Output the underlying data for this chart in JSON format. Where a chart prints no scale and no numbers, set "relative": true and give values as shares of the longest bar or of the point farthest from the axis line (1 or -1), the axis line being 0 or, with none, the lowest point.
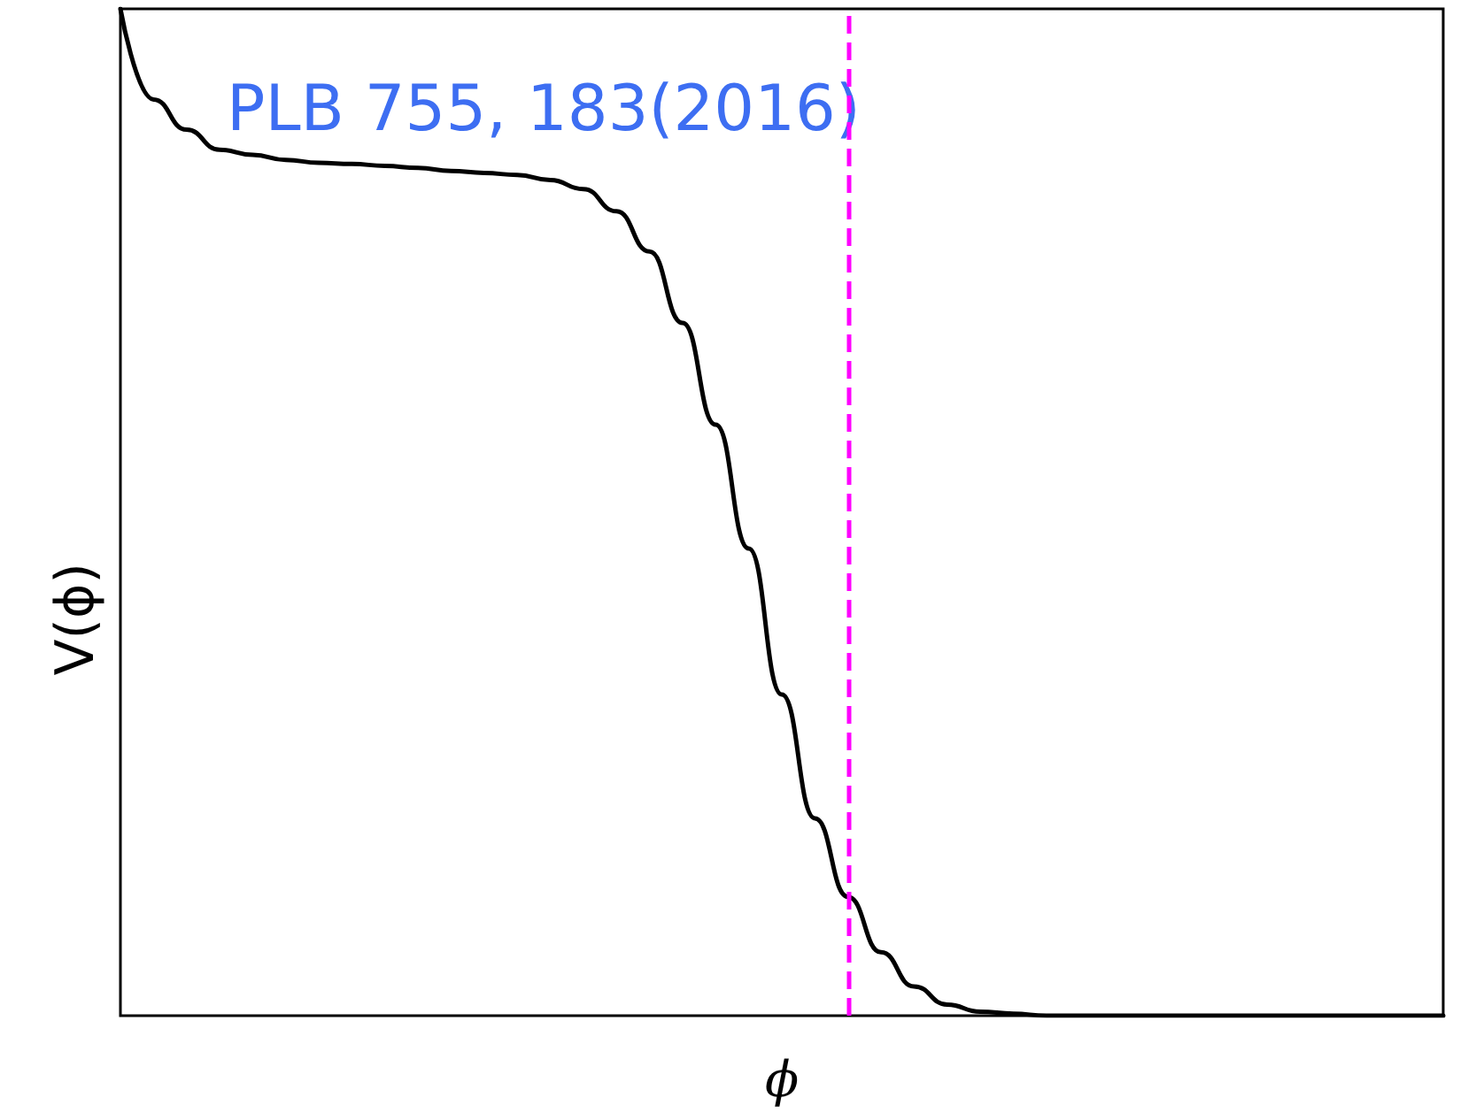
{
  "chart_data": {
    "type": "line",
    "relative": true,
    "xlabel": "ϕ",
    "ylabel": "V(ϕ)",
    "annotations": [
      "PLB 755, 183(2016)"
    ],
    "categories": [
      null,
      null,
      null,
      null,
      null,
      null,
      null,
      null,
      null,
      null,
      null,
      null,
      null,
      null,
      null,
      null,
      null,
      null,
      null,
      null,
      null,
      null,
      null,
      null,
      null,
      null,
      null,
      null,
      null,
      null,
      null,
      null,
      null,
      null,
      null,
      null,
      null,
      null,
      null,
      null,
      null
    ],
    "series": [
      {
        "color": "#000000",
        "values": [
          1.0,
          0.91,
          0.88,
          0.86,
          0.855,
          0.85,
          0.847,
          0.846,
          0.844,
          0.842,
          0.839,
          0.837,
          0.835,
          0.83,
          0.821,
          0.799,
          0.759,
          0.688,
          0.587,
          0.464,
          0.319,
          0.196,
          0.118,
          0.063,
          0.029,
          0.011,
          0.004,
          0.002,
          0,
          0,
          0,
          0,
          0,
          0,
          0,
          0,
          0,
          0,
          0,
          0,
          0
        ]
      }
    ],
    "marker": "none",
    "grid": false
  }
}
